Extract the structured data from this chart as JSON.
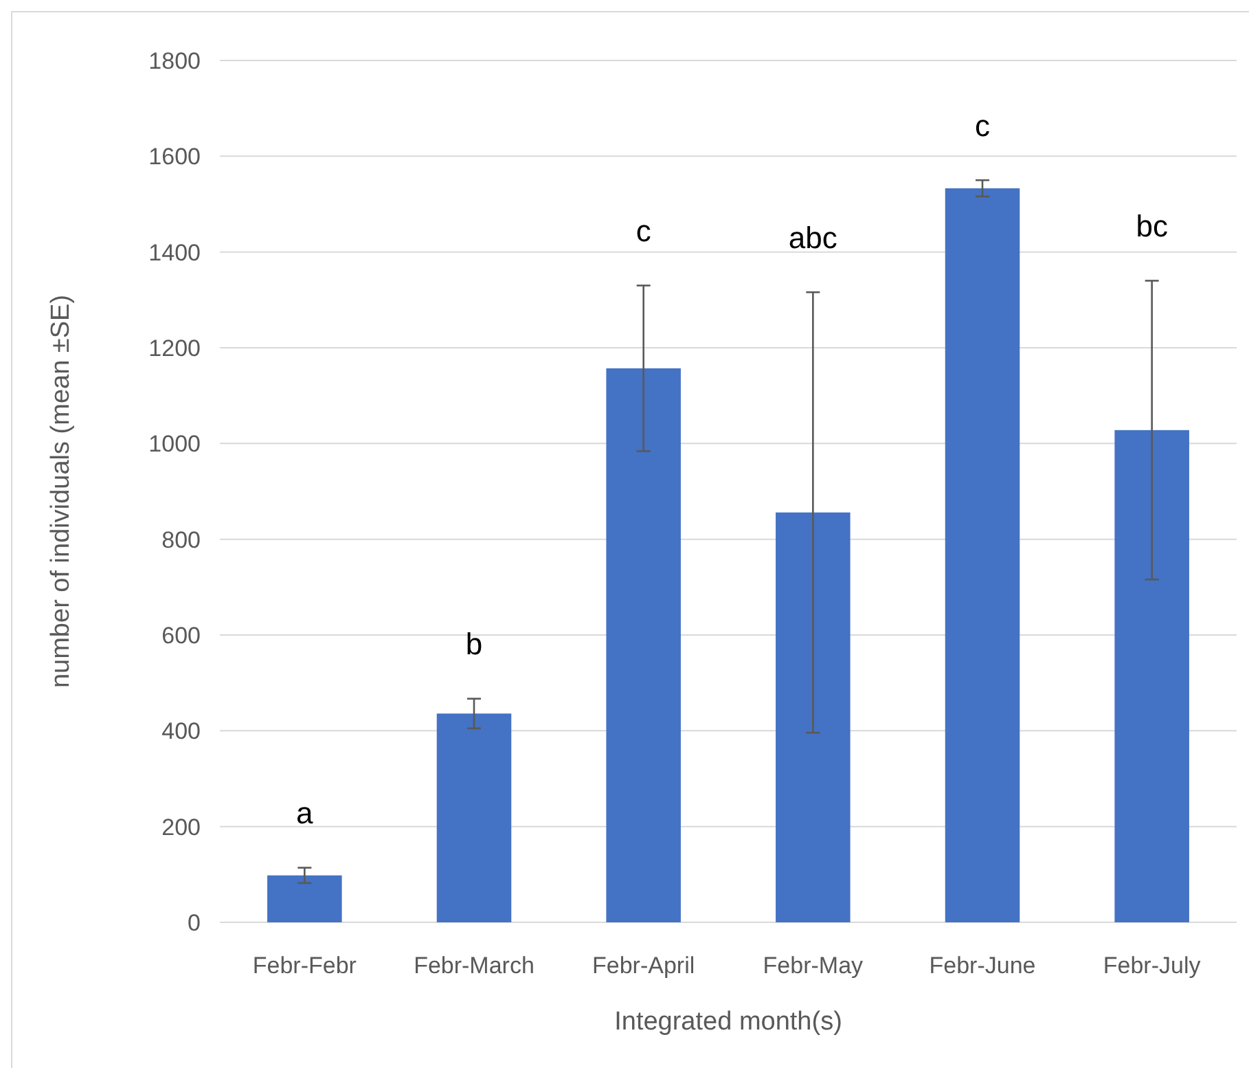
{
  "chart_data": {
    "type": "bar",
    "xlabel": "Integrated month(s)",
    "ylabel": "number of individuals (mean ±SE)",
    "categories": [
      "Febr-Febr",
      "Febr-March",
      "Febr-April",
      "Febr-May",
      "Febr-June",
      "Febr-July"
    ],
    "series": [
      {
        "color": "#4472c4",
        "values": [
          98,
          436,
          1157,
          856,
          1533,
          1028
        ],
        "errors": [
          16,
          31,
          173,
          460,
          17,
          312
        ]
      }
    ],
    "ylim": [
      0,
      1800
    ],
    "yticks": [
      0,
      200,
      400,
      600,
      800,
      1000,
      1200,
      1400,
      1600,
      1800
    ],
    "grid": "y",
    "annotations": [
      "a",
      "b",
      "c",
      "abc",
      "c",
      "bc"
    ]
  }
}
